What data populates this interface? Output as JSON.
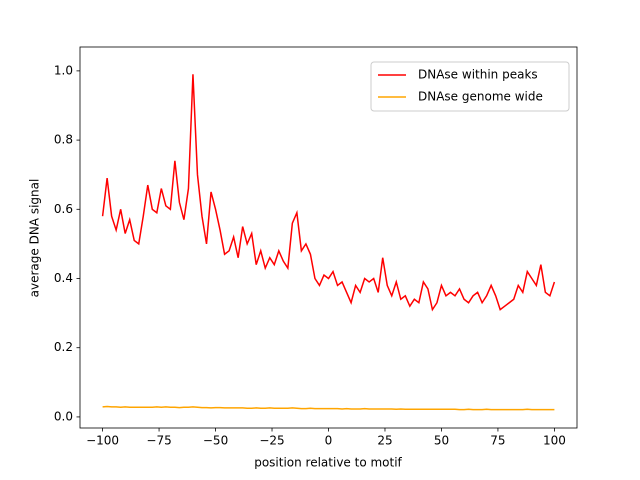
{
  "chart_data": {
    "type": "line",
    "xlabel": "position relative to motif",
    "ylabel": "average DNA signal",
    "x": [
      -100,
      -98,
      -96,
      -94,
      -92,
      -90,
      -88,
      -86,
      -84,
      -82,
      -80,
      -78,
      -76,
      -74,
      -72,
      -70,
      -68,
      -66,
      -64,
      -62,
      -60,
      -58,
      -56,
      -54,
      -52,
      -50,
      -48,
      -46,
      -44,
      -42,
      -40,
      -38,
      -36,
      -34,
      -32,
      -30,
      -28,
      -26,
      -24,
      -22,
      -20,
      -18,
      -16,
      -14,
      -12,
      -10,
      -8,
      -6,
      -4,
      -2,
      0,
      2,
      4,
      6,
      8,
      10,
      12,
      14,
      16,
      18,
      20,
      22,
      24,
      26,
      28,
      30,
      32,
      34,
      36,
      38,
      40,
      42,
      44,
      46,
      48,
      50,
      52,
      54,
      56,
      58,
      60,
      62,
      64,
      66,
      68,
      70,
      72,
      74,
      76,
      78,
      80,
      82,
      84,
      86,
      88,
      90,
      92,
      94,
      96,
      98,
      100
    ],
    "series": [
      {
        "name": "DNAse within peaks",
        "color": "#ff0000",
        "values": [
          0.58,
          0.69,
          0.58,
          0.54,
          0.6,
          0.53,
          0.57,
          0.51,
          0.5,
          0.58,
          0.67,
          0.6,
          0.59,
          0.66,
          0.61,
          0.6,
          0.74,
          0.62,
          0.57,
          0.66,
          0.99,
          0.7,
          0.58,
          0.5,
          0.65,
          0.6,
          0.54,
          0.47,
          0.48,
          0.52,
          0.46,
          0.55,
          0.5,
          0.53,
          0.44,
          0.48,
          0.43,
          0.46,
          0.44,
          0.48,
          0.45,
          0.43,
          0.56,
          0.59,
          0.48,
          0.5,
          0.47,
          0.4,
          0.38,
          0.41,
          0.4,
          0.42,
          0.38,
          0.39,
          0.36,
          0.33,
          0.38,
          0.36,
          0.4,
          0.39,
          0.4,
          0.36,
          0.46,
          0.38,
          0.35,
          0.39,
          0.34,
          0.35,
          0.32,
          0.34,
          0.33,
          0.39,
          0.37,
          0.31,
          0.33,
          0.38,
          0.35,
          0.36,
          0.35,
          0.37,
          0.34,
          0.33,
          0.35,
          0.36,
          0.33,
          0.35,
          0.38,
          0.35,
          0.31,
          0.32,
          0.33,
          0.34,
          0.38,
          0.36,
          0.42,
          0.4,
          0.38,
          0.44,
          0.36,
          0.35,
          0.39
        ]
      },
      {
        "name": "DNAse genome wide",
        "color": "#ffa500",
        "values": [
          0.029,
          0.03,
          0.029,
          0.029,
          0.028,
          0.029,
          0.028,
          0.028,
          0.028,
          0.028,
          0.028,
          0.028,
          0.029,
          0.028,
          0.029,
          0.028,
          0.028,
          0.027,
          0.028,
          0.028,
          0.029,
          0.028,
          0.027,
          0.027,
          0.026,
          0.027,
          0.027,
          0.026,
          0.026,
          0.026,
          0.026,
          0.026,
          0.025,
          0.025,
          0.026,
          0.025,
          0.025,
          0.026,
          0.025,
          0.025,
          0.025,
          0.025,
          0.026,
          0.025,
          0.024,
          0.024,
          0.025,
          0.024,
          0.024,
          0.024,
          0.024,
          0.024,
          0.024,
          0.023,
          0.024,
          0.023,
          0.023,
          0.023,
          0.024,
          0.023,
          0.023,
          0.023,
          0.023,
          0.023,
          0.023,
          0.022,
          0.023,
          0.022,
          0.022,
          0.022,
          0.022,
          0.022,
          0.022,
          0.022,
          0.022,
          0.022,
          0.022,
          0.022,
          0.022,
          0.021,
          0.021,
          0.022,
          0.021,
          0.021,
          0.021,
          0.022,
          0.021,
          0.021,
          0.021,
          0.021,
          0.021,
          0.021,
          0.021,
          0.021,
          0.022,
          0.021,
          0.021,
          0.021,
          0.021,
          0.021,
          0.021
        ]
      }
    ],
    "xlim": [
      -110,
      110
    ],
    "ylim": [
      -0.032,
      1.069
    ],
    "xticks": [
      {
        "value": -100,
        "label": "−100"
      },
      {
        "value": -75,
        "label": "−75"
      },
      {
        "value": -50,
        "label": "−50"
      },
      {
        "value": -25,
        "label": "−25"
      },
      0,
      25,
      50,
      75,
      100
    ],
    "yticks": [
      {
        "value": 0,
        "label": "0.0"
      },
      0.2,
      0.4,
      0.6,
      0.8,
      {
        "value": 1,
        "label": "1.0"
      }
    ],
    "legend": "upper right"
  }
}
